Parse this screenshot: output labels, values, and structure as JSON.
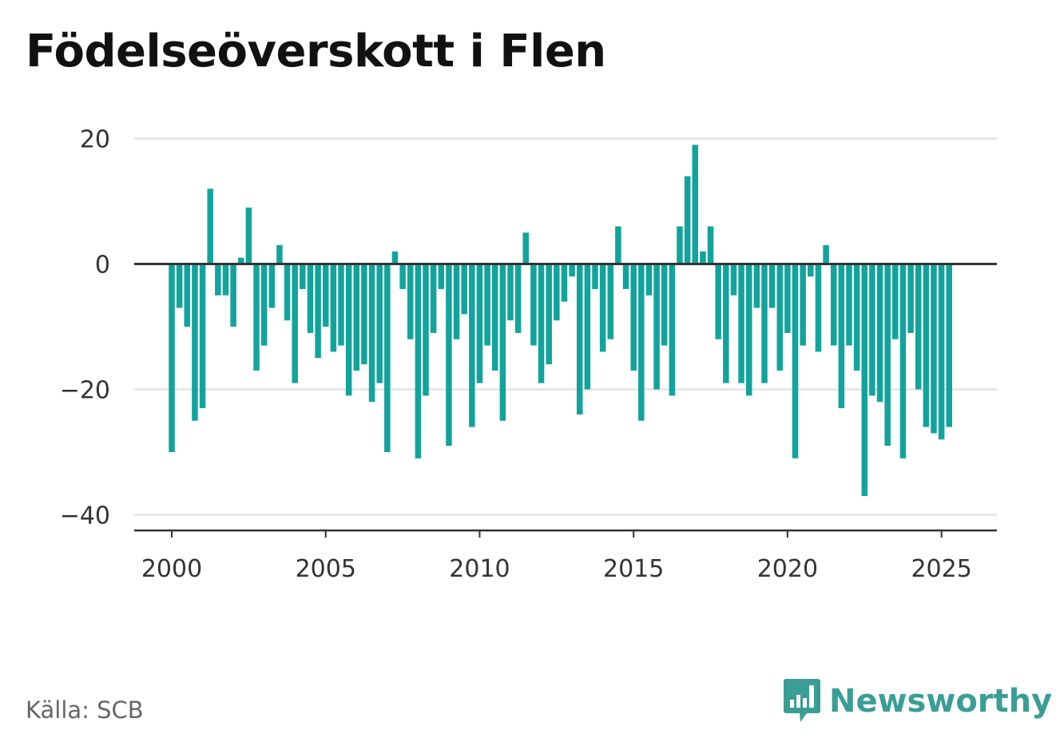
{
  "title": "Födelseöverskott i Flen",
  "source": "Källa: SCB",
  "brand": "Newsworthy",
  "colors": {
    "bar": "#12a49c",
    "grid": "#dddddd",
    "axis": "#333333",
    "brand": "#3a9e96"
  },
  "chart_data": {
    "type": "bar",
    "title": "Födelseöverskott i Flen",
    "xlabel": "",
    "ylabel": "",
    "x_ticks": [
      2000,
      2005,
      2010,
      2015,
      2020,
      2025
    ],
    "y_ticks": [
      20,
      0,
      -20,
      -40
    ],
    "xlim": [
      1998.78,
      2026.8
    ],
    "ylim": [
      -42.5,
      20
    ],
    "grid": true,
    "start_year": 2000,
    "values_per_year": 4,
    "values": [
      -30,
      -7,
      -10,
      -25,
      -23,
      12,
      -5,
      -5,
      -10,
      1,
      9,
      -17,
      -13,
      -7,
      3,
      -9,
      -19,
      -4,
      -11,
      -15,
      -10,
      -14,
      -13,
      -21,
      -17,
      -16,
      -22,
      -19,
      -30,
      2,
      -4,
      -12,
      -31,
      -21,
      -11,
      -4,
      -29,
      -12,
      -8,
      -26,
      -19,
      -13,
      -17,
      -25,
      -9,
      -11,
      5,
      -13,
      -19,
      -16,
      -9,
      -6,
      -2,
      -24,
      -20,
      -4,
      -14,
      -12,
      6,
      -4,
      -17,
      -25,
      -5,
      -20,
      -13,
      -21,
      6,
      14,
      19,
      2,
      6,
      -12,
      -19,
      -5,
      -19,
      -21,
      -7,
      -19,
      -7,
      -17,
      -11,
      -31,
      -13,
      -2,
      -14,
      3,
      -13,
      -23,
      -13,
      -17,
      -37,
      -21,
      -22,
      -29,
      -12,
      -31,
      -11,
      -20,
      -26,
      -27,
      -28,
      -26
    ]
  }
}
